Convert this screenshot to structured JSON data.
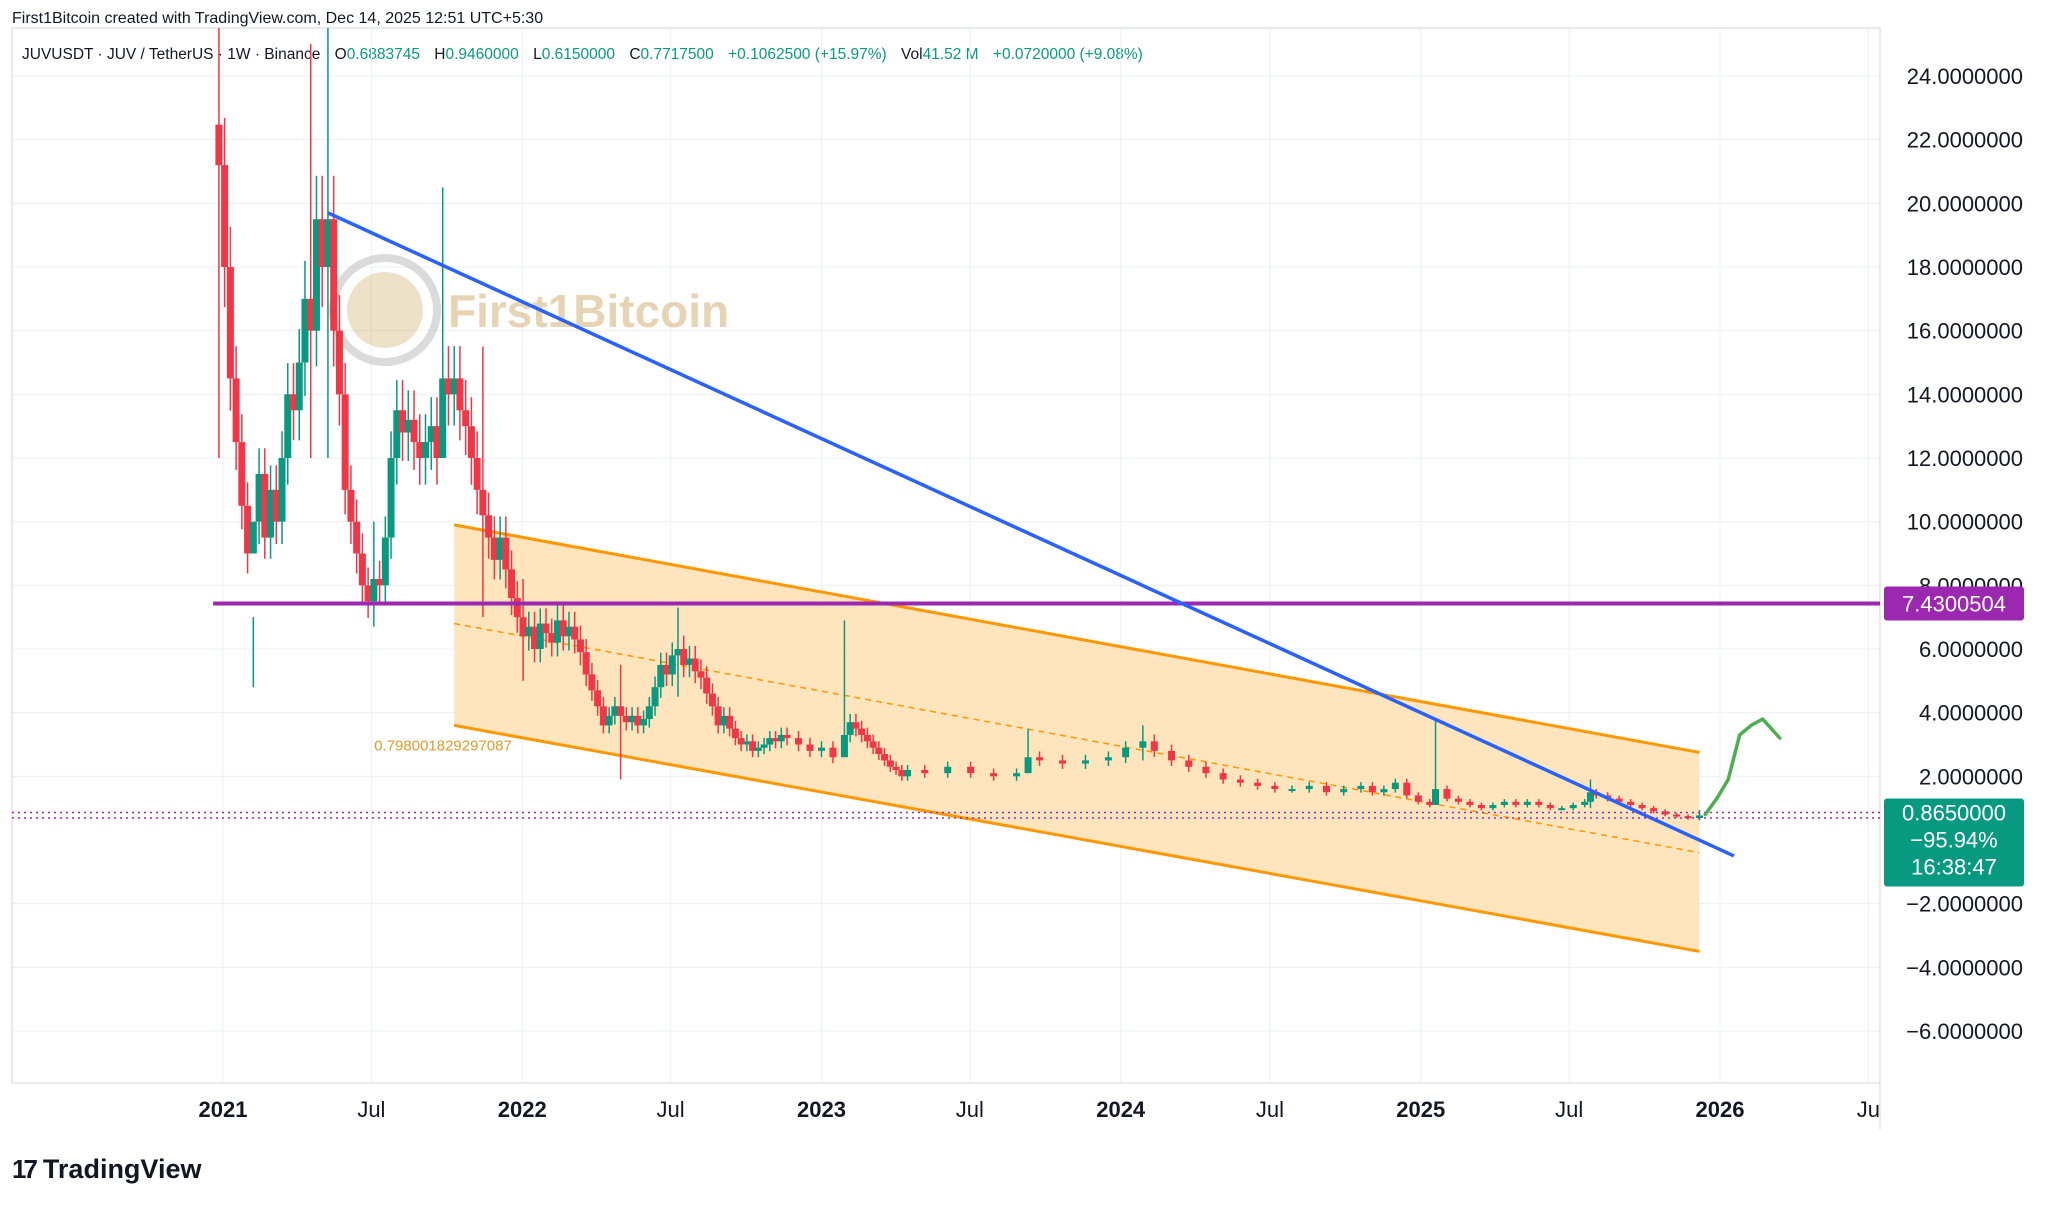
{
  "header": {
    "created_by": "First1Bitcoin created with TradingView.com, Dec 14, 2025 12:51 UTC+5:30"
  },
  "legend": {
    "symbol": "JUVUSDT · JUV / TetherUS · 1W · Binance",
    "open_label": "O",
    "open": "0.6883745",
    "high_label": "H",
    "high": "0.9460000",
    "low_label": "L",
    "low": "0.6150000",
    "close_label": "C",
    "close": "0.7717500",
    "change": "+0.1062500 (+15.97%)",
    "vol_label": "Vol",
    "vol": "41.52 M",
    "vol_change": "+0.0720000 (+9.08%)"
  },
  "watermark": {
    "text": "First1Bitcoin"
  },
  "branding": {
    "logo": "17",
    "text": "TradingView"
  },
  "colors": {
    "up": "#089981",
    "down": "#F23645",
    "trendline": "#2962FF",
    "resistance": "#9C27B0",
    "channel": "#FF9800",
    "channel_fill": "#FFE0B2",
    "path": "#4CAF50",
    "price_label": "#089981"
  },
  "chart_data": {
    "type": "candlestick",
    "symbol": "JUVUSDT",
    "interval": "1W",
    "ylim": [
      -8,
      25.5
    ],
    "y_ticks": [
      "24.0000000",
      "22.0000000",
      "20.0000000",
      "18.0000000",
      "16.0000000",
      "14.0000000",
      "12.0000000",
      "10.0000000",
      "8.0000000",
      "6.0000000",
      "4.0000000",
      "2.0000000",
      "−2.0000000",
      "−4.0000000",
      "−6.0000000"
    ],
    "y_tick_values": [
      24,
      22,
      20,
      18,
      16,
      14,
      12,
      10,
      8,
      6,
      4,
      2,
      -2,
      -4,
      -6
    ],
    "x_range": [
      "2020-11-15",
      "2026-11-01"
    ],
    "x_ticks": [
      {
        "label": "2021",
        "date": "2021-01-01",
        "bold": true
      },
      {
        "label": "Jul",
        "date": "2021-07-01",
        "bold": false
      },
      {
        "label": "2022",
        "date": "2022-01-01",
        "bold": true
      },
      {
        "label": "Jul",
        "date": "2022-07-01",
        "bold": false
      },
      {
        "label": "2023",
        "date": "2023-01-01",
        "bold": true
      },
      {
        "label": "Jul",
        "date": "2023-07-01",
        "bold": false
      },
      {
        "label": "2024",
        "date": "2024-01-01",
        "bold": true
      },
      {
        "label": "Jul",
        "date": "2024-07-01",
        "bold": false
      },
      {
        "label": "2025",
        "date": "2025-01-01",
        "bold": true
      },
      {
        "label": "Jul",
        "date": "2025-07-01",
        "bold": false
      },
      {
        "label": "2026",
        "date": "2026-01-01",
        "bold": true
      },
      {
        "label": "Ju",
        "date": "2026-07-01",
        "bold": false
      }
    ],
    "closes": [
      [
        "2020-12-27",
        21.2
      ],
      [
        "2021-01-03",
        18
      ],
      [
        "2021-01-10",
        14.5
      ],
      [
        "2021-01-17",
        12.5
      ],
      [
        "2021-01-24",
        10.5
      ],
      [
        "2021-01-31",
        9
      ],
      [
        "2021-02-07",
        10
      ],
      [
        "2021-02-14",
        11.5
      ],
      [
        "2021-02-21",
        9.5
      ],
      [
        "2021-02-28",
        11
      ],
      [
        "2021-03-07",
        10
      ],
      [
        "2021-03-14",
        12
      ],
      [
        "2021-03-21",
        14
      ],
      [
        "2021-03-28",
        13.5
      ],
      [
        "2021-04-04",
        15
      ],
      [
        "2021-04-11",
        17
      ],
      [
        "2021-04-18",
        16
      ],
      [
        "2021-04-25",
        19.5
      ],
      [
        "2021-05-02",
        18
      ],
      [
        "2021-05-09",
        19.5
      ],
      [
        "2021-05-16",
        16
      ],
      [
        "2021-05-23",
        14
      ],
      [
        "2021-05-30",
        11
      ],
      [
        "2021-06-06",
        10
      ],
      [
        "2021-06-13",
        9
      ],
      [
        "2021-06-20",
        8
      ],
      [
        "2021-06-27",
        7.5
      ],
      [
        "2021-07-04",
        8.2
      ],
      [
        "2021-07-11",
        8
      ],
      [
        "2021-07-18",
        9.5
      ],
      [
        "2021-07-25",
        12
      ],
      [
        "2021-08-01",
        13.5
      ],
      [
        "2021-08-08",
        12.8
      ],
      [
        "2021-08-15",
        13.2
      ],
      [
        "2021-08-22",
        12.5
      ],
      [
        "2021-08-29",
        12
      ],
      [
        "2021-09-05",
        12.5
      ],
      [
        "2021-09-12",
        13
      ],
      [
        "2021-09-19",
        12
      ],
      [
        "2021-09-26",
        14.5
      ],
      [
        "2021-10-03",
        14
      ],
      [
        "2021-10-10",
        14.5
      ],
      [
        "2021-10-17",
        13.5
      ],
      [
        "2021-10-24",
        13
      ],
      [
        "2021-10-31",
        12
      ],
      [
        "2021-11-07",
        11
      ],
      [
        "2021-11-14",
        10.2
      ],
      [
        "2021-11-21",
        9.5
      ],
      [
        "2021-11-28",
        8.8
      ],
      [
        "2021-12-05",
        9.5
      ],
      [
        "2021-12-12",
        8.5
      ],
      [
        "2021-12-19",
        7.6
      ],
      [
        "2021-12-26",
        7
      ],
      [
        "2022-01-02",
        6.4
      ],
      [
        "2022-01-09",
        6.7
      ],
      [
        "2022-01-16",
        6
      ],
      [
        "2022-01-23",
        6.8
      ],
      [
        "2022-01-30",
        6.5
      ],
      [
        "2022-02-06",
        6.2
      ],
      [
        "2022-02-13",
        6.9
      ],
      [
        "2022-02-20",
        6.4
      ],
      [
        "2022-02-27",
        6.7
      ],
      [
        "2022-03-06",
        6.3
      ],
      [
        "2022-03-13",
        5.9
      ],
      [
        "2022-03-20",
        5.2
      ],
      [
        "2022-03-27",
        4.7
      ],
      [
        "2022-04-03",
        4.2
      ],
      [
        "2022-04-10",
        3.6
      ],
      [
        "2022-04-17",
        3.9
      ],
      [
        "2022-04-24",
        4.2
      ],
      [
        "2022-05-01",
        3.9
      ],
      [
        "2022-05-08",
        3.7
      ],
      [
        "2022-05-15",
        3.9
      ],
      [
        "2022-05-22",
        3.6
      ],
      [
        "2022-05-29",
        3.8
      ],
      [
        "2022-06-05",
        4.2
      ],
      [
        "2022-06-12",
        4.8
      ],
      [
        "2022-06-19",
        5.5
      ],
      [
        "2022-06-26",
        5.2
      ],
      [
        "2022-07-03",
        5.8
      ],
      [
        "2022-07-10",
        6
      ],
      [
        "2022-07-17",
        5.5
      ],
      [
        "2022-07-24",
        5.7
      ],
      [
        "2022-07-31",
        5.3
      ],
      [
        "2022-08-07",
        5.1
      ],
      [
        "2022-08-14",
        4.6
      ],
      [
        "2022-08-21",
        4.2
      ],
      [
        "2022-08-28",
        3.6
      ],
      [
        "2022-09-04",
        3.9
      ],
      [
        "2022-09-11",
        3.5
      ],
      [
        "2022-09-18",
        3.2
      ],
      [
        "2022-09-25",
        3
      ],
      [
        "2022-10-02",
        3.1
      ],
      [
        "2022-10-09",
        2.8
      ],
      [
        "2022-10-16",
        2.9
      ],
      [
        "2022-10-23",
        3
      ],
      [
        "2022-10-30",
        3.2
      ],
      [
        "2022-11-06",
        3.1
      ],
      [
        "2022-11-13",
        3.3
      ],
      [
        "2022-11-20",
        3.2
      ],
      [
        "2022-12-04",
        3
      ],
      [
        "2022-12-18",
        2.8
      ],
      [
        "2023-01-01",
        2.9
      ],
      [
        "2023-01-15",
        2.6
      ],
      [
        "2023-01-29",
        3.3
      ],
      [
        "2023-02-05",
        3.7
      ],
      [
        "2023-02-12",
        3.5
      ],
      [
        "2023-02-19",
        3.3
      ],
      [
        "2023-02-26",
        3.1
      ],
      [
        "2023-03-05",
        2.9
      ],
      [
        "2023-03-12",
        2.7
      ],
      [
        "2023-03-19",
        2.5
      ],
      [
        "2023-03-26",
        2.3
      ],
      [
        "2023-04-02",
        2.2
      ],
      [
        "2023-04-09",
        2
      ],
      [
        "2023-04-16",
        2.2
      ],
      [
        "2023-05-07",
        2.1
      ],
      [
        "2023-06-04",
        2.3
      ],
      [
        "2023-07-02",
        2.1
      ],
      [
        "2023-07-30",
        2
      ],
      [
        "2023-08-27",
        2.1
      ],
      [
        "2023-09-10",
        2.6
      ],
      [
        "2023-09-24",
        2.5
      ],
      [
        "2023-10-22",
        2.4
      ],
      [
        "2023-11-19",
        2.5
      ],
      [
        "2023-12-17",
        2.6
      ],
      [
        "2024-01-07",
        2.9
      ],
      [
        "2024-01-28",
        3.1
      ],
      [
        "2024-02-11",
        2.8
      ],
      [
        "2024-03-03",
        2.5
      ],
      [
        "2024-03-24",
        2.3
      ],
      [
        "2024-04-14",
        2.1
      ],
      [
        "2024-05-05",
        1.9
      ],
      [
        "2024-05-26",
        1.8
      ],
      [
        "2024-06-16",
        1.7
      ],
      [
        "2024-07-07",
        1.6
      ],
      [
        "2024-07-28",
        1.6
      ],
      [
        "2024-08-18",
        1.7
      ],
      [
        "2024-09-08",
        1.5
      ],
      [
        "2024-09-29",
        1.6
      ],
      [
        "2024-10-20",
        1.7
      ],
      [
        "2024-11-03",
        1.5
      ],
      [
        "2024-11-17",
        1.6
      ],
      [
        "2024-12-01",
        1.8
      ],
      [
        "2024-12-15",
        1.4
      ],
      [
        "2024-12-29",
        1.2
      ],
      [
        "2025-01-12",
        1.1
      ],
      [
        "2025-01-19",
        1.6
      ],
      [
        "2025-02-02",
        1.3
      ],
      [
        "2025-02-16",
        1.2
      ],
      [
        "2025-03-02",
        1.1
      ],
      [
        "2025-03-16",
        1.0
      ],
      [
        "2025-03-30",
        1.1
      ],
      [
        "2025-04-13",
        1.2
      ],
      [
        "2025-04-27",
        1.1
      ],
      [
        "2025-05-11",
        1.2
      ],
      [
        "2025-05-25",
        1.1
      ],
      [
        "2025-06-08",
        1.0
      ],
      [
        "2025-06-22",
        1.0
      ],
      [
        "2025-07-06",
        1.1
      ],
      [
        "2025-07-20",
        1.2
      ],
      [
        "2025-07-27",
        1.5
      ],
      [
        "2025-08-03",
        1.4
      ],
      [
        "2025-08-17",
        1.3
      ],
      [
        "2025-08-31",
        1.2
      ],
      [
        "2025-09-14",
        1.1
      ],
      [
        "2025-09-28",
        1.0
      ],
      [
        "2025-10-12",
        0.9
      ],
      [
        "2025-10-26",
        0.8
      ],
      [
        "2025-11-09",
        0.75
      ],
      [
        "2025-11-23",
        0.69
      ],
      [
        "2025-12-07",
        0.77
      ]
    ],
    "wicks": [
      [
        "2020-12-27",
        27,
        12
      ],
      [
        "2021-02-07",
        7,
        4.8
      ],
      [
        "2021-04-18",
        25,
        12
      ],
      [
        "2021-05-09",
        27,
        12
      ],
      [
        "2021-07-04",
        10,
        6.7
      ],
      [
        "2021-09-26",
        20.5,
        13
      ],
      [
        "2021-11-14",
        15.5,
        7
      ],
      [
        "2022-01-02",
        8.2,
        5
      ],
      [
        "2022-05-01",
        5.5,
        1.9
      ],
      [
        "2022-07-10",
        7.3,
        4.5
      ],
      [
        "2023-01-29",
        6.9,
        2.8
      ],
      [
        "2023-09-10",
        3.5,
        2.1
      ],
      [
        "2024-01-28",
        3.6,
        2.5
      ],
      [
        "2025-01-19",
        3.8,
        1.2
      ],
      [
        "2025-07-27",
        1.9,
        1.0
      ],
      [
        "2025-12-07",
        0.946,
        0.615
      ]
    ],
    "trendline": [
      [
        "2021-05-09",
        19.7
      ],
      [
        "2026-01-18",
        -0.5
      ]
    ],
    "resistance": {
      "value": 7.43,
      "label": "7.4300504",
      "from": "2020-12-20"
    },
    "channel": {
      "upper": [
        [
          "2021-10-10",
          9.9
        ],
        [
          "2025-12-07",
          2.75
        ]
      ],
      "lower": [
        [
          "2021-10-10",
          3.6
        ],
        [
          "2025-12-07",
          -3.5
        ]
      ],
      "mid": [
        [
          "2021-10-10",
          6.8
        ],
        [
          "2025-12-07",
          -0.4
        ]
      ],
      "annotation": "0.798001829297087"
    },
    "projection": [
      [
        "2025-12-14",
        0.8
      ],
      [
        "2025-12-28",
        1.3
      ],
      [
        "2026-01-11",
        1.9
      ],
      [
        "2026-01-25",
        3.3
      ],
      [
        "2026-02-08",
        3.6
      ],
      [
        "2026-02-22",
        3.8
      ],
      [
        "2026-03-15",
        3.2
      ]
    ],
    "dotted_levels": [
      0.865,
      0.69
    ],
    "price": {
      "value": 0.865,
      "label": "0.8650000",
      "change": "−95.94%",
      "countdown": "16:38:47"
    }
  }
}
